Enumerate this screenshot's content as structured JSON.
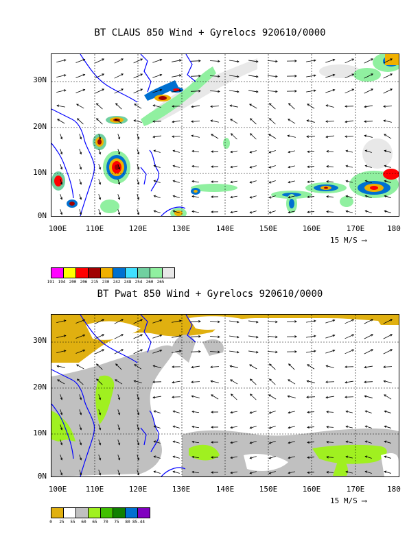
{
  "panel_top": {
    "title": "BT CLAUS 850 Wind + Gyrelocs 920610/0000",
    "lat_labels": [
      "30N",
      "20N",
      "10N",
      "0N"
    ],
    "lon_labels": [
      "100E",
      "110E",
      "120E",
      "130E",
      "140E",
      "150E",
      "160E",
      "170E",
      "180"
    ],
    "scale_label": "15 M/S",
    "colorbar": {
      "colors": [
        "#ff00ff",
        "#ffff00",
        "#ff0000",
        "#a00000",
        "#f0b000",
        "#0070d0",
        "#40e0ff",
        "#70d0a0",
        "#90f0a0",
        "#e8e8e8"
      ],
      "labels": [
        "191",
        "194",
        "200",
        "206",
        "215",
        "230",
        "242",
        "248",
        "254",
        "260",
        "265"
      ]
    },
    "accent": {
      "coast": "#0000ff",
      "grid": "#000000"
    }
  },
  "panel_bottom": {
    "title": "BT Pwat 850 Wind + Gyrelocs 920610/0000",
    "lat_labels": [
      "30N",
      "20N",
      "10N",
      "0N"
    ],
    "lon_labels": [
      "100E",
      "110E",
      "120E",
      "130E",
      "140E",
      "150E",
      "160E",
      "170E",
      "180"
    ],
    "scale_label": "15 M/S",
    "colorbar": {
      "colors": [
        "#e0b010",
        "#ffffff",
        "#c0c0c0",
        "#a0f020",
        "#40c000",
        "#108000",
        "#0070d0",
        "#8000c0"
      ],
      "labels": [
        "0",
        "25",
        "55",
        "60",
        "65",
        "70",
        "75",
        "80",
        "85.44"
      ]
    },
    "accent": {
      "pwat_low": "#e0b010",
      "pwat_mid": "#c0c0c0",
      "pwat_high": "#a0f020"
    }
  }
}
